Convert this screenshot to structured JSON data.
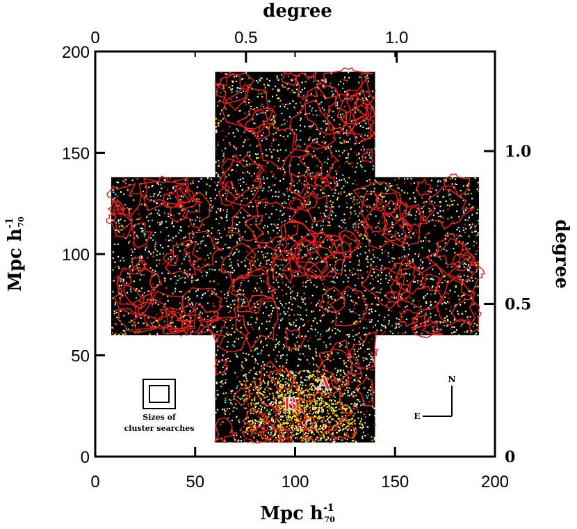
{
  "chart_data": {
    "type": "scatter",
    "title": "",
    "xlabel": "Mpc h",
    "xlabel_sub": "70",
    "xlabel_sup": "-1",
    "ylabel": "Mpc h",
    "ylabel_sub": "70",
    "ylabel_sup": "-1",
    "top_label": "degree",
    "right_label": "degree",
    "xlim": [
      0,
      200
    ],
    "ylim": [
      0,
      200
    ],
    "x_ticks": [
      "0",
      "50",
      "100",
      "150",
      "200"
    ],
    "y_ticks": [
      "0",
      "50",
      "100",
      "150",
      "200"
    ],
    "x_tick_values": [
      0,
      50,
      100,
      150,
      200
    ],
    "y_tick_values": [
      0,
      50,
      100,
      150,
      200
    ],
    "top_ticks": [
      "0",
      "0.5",
      "1.0"
    ],
    "top_tick_values": [
      0,
      0.5,
      1.0
    ],
    "right_ticks": [
      "0",
      "0.5",
      "1.0"
    ],
    "right_tick_values": [
      0,
      0.5,
      1.0
    ],
    "degree_per_mpc": 0.00663,
    "survey_region": [
      {
        "x0": 60,
        "x1": 140,
        "y0": 7,
        "y1": 190
      },
      {
        "x0": 8,
        "x1": 192,
        "y0": 60,
        "y1": 138
      }
    ],
    "annotations": [
      {
        "text": "A",
        "x": 111,
        "y": 33
      },
      {
        "text": "B",
        "x": 94,
        "y": 23
      }
    ],
    "legend_box": {
      "line1": "Sizes of",
      "line2": "cluster searches"
    },
    "compass": {
      "north": "N",
      "east": "E"
    },
    "colors": {
      "background_field": "#000000",
      "contour": "#ff1a1a",
      "points": [
        "#ffffff",
        "#ffff00",
        "#ff6600",
        "#00ffff",
        "#ff0000"
      ]
    }
  }
}
